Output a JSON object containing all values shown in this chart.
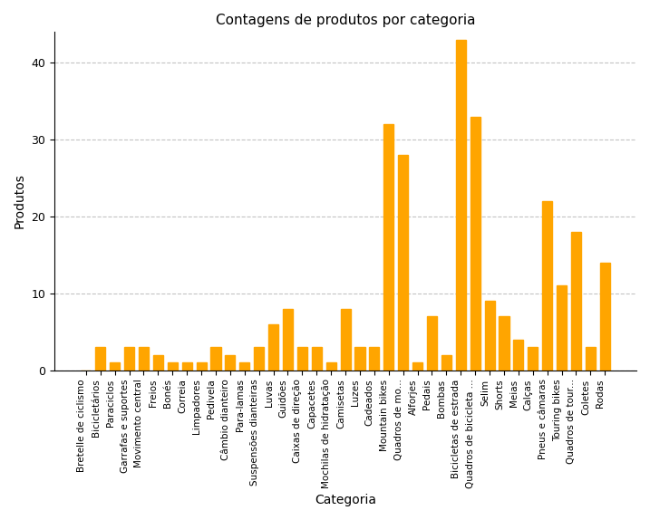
{
  "title": "Contagens de produtos por categoria",
  "xlabel": "Categoria",
  "ylabel": "Produtos",
  "bar_color": "#FFA500",
  "categories": [
    "Bretelle de ciclismo",
    "Bicicletários",
    "Paraciclos",
    "Garrafas e suportes",
    "Movimento central",
    "Freios",
    "Bonés",
    "Correia",
    "Limpadores",
    "Pedivela",
    "Câmbio dianteiro",
    "Para-lamas",
    "Suspensões dianteiras",
    "Luvas",
    "Guidões",
    "Caixas de direção",
    "Capacetes",
    "Mochilas de hidratação",
    "Camisetas",
    "Luzes",
    "Cadeados",
    "Mountain bikes",
    "Quadros de mo...",
    "Alforjes",
    "Pedais",
    "Bombas",
    "Bicicletas de estrada",
    "Quadros de bicicleta ...",
    "Selim",
    "Shorts",
    "Meias",
    "Calças",
    "Pneus e câmaras",
    "Touring bikes",
    "Quadros de tour...",
    "Coletes",
    "Rodas"
  ],
  "values": [
    0,
    3,
    1,
    3,
    3,
    2,
    1,
    1,
    1,
    3,
    2,
    1,
    3,
    6,
    8,
    3,
    3,
    1,
    8,
    3,
    3,
    32,
    28,
    1,
    7,
    2,
    43,
    33,
    9,
    7,
    4,
    3,
    22,
    11,
    18,
    3,
    14
  ],
  "ylim": [
    0,
    44
  ],
  "yticks": [
    0,
    10,
    20,
    30,
    40
  ],
  "grid_color": "#aaaaaa",
  "grid_style": "--",
  "grid_alpha": 0.7,
  "figsize": [
    7.17,
    5.74
  ],
  "dpi": 100
}
